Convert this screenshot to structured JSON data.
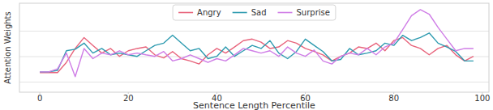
{
  "chart_data": {
    "type": "line",
    "x_label": "Sentence Length Percentile",
    "y_label": "Attention Weights",
    "x": [
      0,
      2,
      4,
      6,
      8,
      10,
      12,
      14,
      16,
      18,
      20,
      22,
      24,
      26,
      28,
      30,
      32,
      34,
      36,
      38,
      40,
      42,
      44,
      46,
      48,
      50,
      52,
      54,
      56,
      58,
      60,
      62,
      64,
      66,
      68,
      70,
      72,
      74,
      76,
      78,
      80,
      82,
      84,
      86,
      88,
      90,
      92,
      94,
      96,
      98
    ],
    "series": [
      {
        "name": "Angry",
        "color": "#e8647c",
        "values": [
          1.37,
          1.37,
          1.37,
          1.77,
          2.32,
          2.75,
          2.44,
          2.14,
          2.32,
          2.01,
          2.23,
          2.32,
          2.38,
          2.07,
          1.95,
          2.2,
          1.92,
          1.83,
          1.71,
          2.07,
          2.32,
          2.14,
          2.38,
          2.63,
          2.69,
          2.57,
          2.32,
          2.38,
          2.63,
          2.53,
          2.32,
          2.2,
          2.07,
          1.83,
          2.01,
          2.14,
          2.38,
          2.32,
          2.53,
          2.23,
          2.63,
          2.75,
          2.44,
          2.32,
          2.07,
          2.32,
          2.44,
          2.07,
          1.83,
          2.01
        ]
      },
      {
        "name": "Sad",
        "color": "#2e9bb0",
        "values": [
          1.4,
          1.4,
          1.46,
          2.23,
          2.29,
          2.53,
          2.14,
          2.32,
          2.07,
          2.14,
          2.07,
          2.01,
          2.23,
          2.44,
          2.53,
          2.84,
          2.53,
          2.23,
          2.32,
          1.92,
          2.01,
          2.38,
          2.01,
          2.23,
          2.44,
          2.32,
          2.63,
          2.14,
          1.92,
          2.2,
          2.69,
          2.44,
          2.2,
          1.83,
          1.89,
          2.32,
          2.07,
          2.14,
          2.23,
          2.53,
          2.44,
          2.84,
          2.63,
          2.75,
          2.93,
          2.53,
          2.38,
          2.2,
          1.83,
          1.83
        ]
      },
      {
        "name": "Surprise",
        "color": "#cf7de6",
        "values": [
          1.4,
          1.4,
          1.52,
          2.14,
          1.21,
          2.32,
          1.92,
          2.14,
          2.07,
          2.23,
          2.07,
          2.14,
          2.07,
          2.01,
          2.2,
          1.83,
          1.92,
          2.07,
          1.92,
          1.77,
          1.92,
          1.83,
          2.07,
          2.32,
          2.23,
          2.14,
          2.23,
          2.01,
          2.38,
          2.14,
          2.01,
          2.26,
          1.83,
          1.71,
          2.01,
          2.14,
          2.07,
          2.32,
          2.07,
          2.38,
          2.53,
          3.06,
          3.61,
          3.85,
          3.67,
          3.15,
          2.69,
          2.23,
          2.32,
          2.32
        ]
      }
    ],
    "xlim": [
      -4.6,
      101.5
    ],
    "xticks": [
      0,
      20,
      40,
      60,
      80,
      100
    ],
    "ylim": [
      0.6,
      4.1
    ],
    "yticks": [
      1,
      2,
      3
    ],
    "grid": "y",
    "tick_labels": "x",
    "legend": "upper center"
  }
}
